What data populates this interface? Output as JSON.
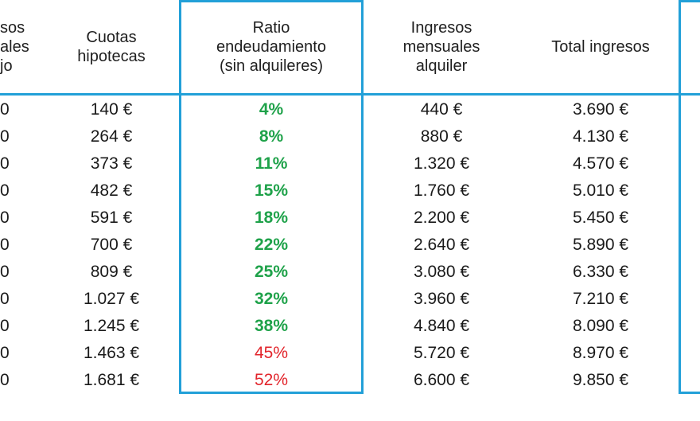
{
  "headers": {
    "col0": [
      "sos",
      "ales",
      "jo"
    ],
    "col1": [
      "Cuotas",
      "hipotecas"
    ],
    "col2": [
      "Ratio",
      "endeudamiento",
      "(sin alquileres)"
    ],
    "col3": [
      "Ingresos",
      "mensuales",
      "alquiler"
    ],
    "col4": [
      "Total ingresos"
    ]
  },
  "rows": [
    {
      "c0": "0",
      "cuota": "140 €",
      "ratio": "4%",
      "status": "ok",
      "alquiler": "440 €",
      "total": "3.690 €"
    },
    {
      "c0": "0",
      "cuota": "264 €",
      "ratio": "8%",
      "status": "ok",
      "alquiler": "880 €",
      "total": "4.130 €"
    },
    {
      "c0": "0",
      "cuota": "373 €",
      "ratio": "11%",
      "status": "ok",
      "alquiler": "1.320 €",
      "total": "4.570 €"
    },
    {
      "c0": "0",
      "cuota": "482 €",
      "ratio": "15%",
      "status": "ok",
      "alquiler": "1.760 €",
      "total": "5.010 €"
    },
    {
      "c0": "0",
      "cuota": "591 €",
      "ratio": "18%",
      "status": "ok",
      "alquiler": "2.200 €",
      "total": "5.450 €"
    },
    {
      "c0": "0",
      "cuota": "700 €",
      "ratio": "22%",
      "status": "ok",
      "alquiler": "2.640 €",
      "total": "5.890 €"
    },
    {
      "c0": "0",
      "cuota": "809 €",
      "ratio": "25%",
      "status": "ok",
      "alquiler": "3.080 €",
      "total": "6.330 €"
    },
    {
      "c0": "0",
      "cuota": "1.027 €",
      "ratio": "32%",
      "status": "ok",
      "alquiler": "3.960 €",
      "total": "7.210 €"
    },
    {
      "c0": "0",
      "cuota": "1.245 €",
      "ratio": "38%",
      "status": "ok",
      "alquiler": "4.840 €",
      "total": "8.090 €"
    },
    {
      "c0": "0",
      "cuota": "1.463 €",
      "ratio": "45%",
      "status": "bad",
      "alquiler": "5.720 €",
      "total": "8.970 €"
    },
    {
      "c0": "0",
      "cuota": "1.681 €",
      "ratio": "52%",
      "status": "bad",
      "alquiler": "6.600 €",
      "total": "9.850 €"
    }
  ],
  "colors": {
    "accent_border": "#22a0d8",
    "ratio_ok": "#1fa24a",
    "ratio_bad": "#e2242b"
  }
}
